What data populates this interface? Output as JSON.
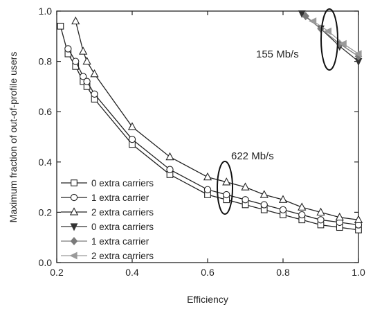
{
  "chart_data": {
    "type": "line",
    "xlabel": "Efficiency",
    "ylabel": "Maximum fraction of out-of-profile users",
    "xlim": [
      0.2,
      1.0
    ],
    "ylim": [
      0.0,
      1.0
    ],
    "xticks": [
      0.2,
      0.4,
      0.6,
      0.8,
      1.0
    ],
    "xtick_labels": [
      "0.2",
      "0.4",
      "0.6",
      "0.8",
      "1.0"
    ],
    "yticks": [
      0.0,
      0.2,
      0.4,
      0.6,
      0.8,
      1.0
    ],
    "ytick_labels": [
      "0.0",
      "0.2",
      "0.4",
      "0.6",
      "0.8",
      "1.0"
    ],
    "grid": false,
    "legend_position": "bottom-left",
    "series": [
      {
        "name": "0 extra carriers",
        "marker": "square-open",
        "color": "#222222",
        "x": [
          0.21,
          0.23,
          0.25,
          0.27,
          0.28,
          0.3,
          0.4,
          0.5,
          0.6,
          0.65,
          0.7,
          0.75,
          0.8,
          0.85,
          0.9,
          0.95,
          1.0
        ],
        "y": [
          0.94,
          0.83,
          0.78,
          0.72,
          0.7,
          0.65,
          0.47,
          0.35,
          0.27,
          0.25,
          0.23,
          0.21,
          0.19,
          0.17,
          0.15,
          0.14,
          0.13
        ]
      },
      {
        "name": "1 extra carrier",
        "marker": "circle-open",
        "color": "#222222",
        "x": [
          0.23,
          0.25,
          0.27,
          0.28,
          0.3,
          0.4,
          0.5,
          0.6,
          0.65,
          0.7,
          0.75,
          0.8,
          0.85,
          0.9,
          0.95,
          1.0
        ],
        "y": [
          0.85,
          0.8,
          0.74,
          0.72,
          0.67,
          0.49,
          0.37,
          0.29,
          0.27,
          0.25,
          0.23,
          0.21,
          0.19,
          0.17,
          0.16,
          0.15
        ]
      },
      {
        "name": "2 extra carriers",
        "marker": "triangle-open",
        "color": "#222222",
        "x": [
          0.25,
          0.27,
          0.28,
          0.3,
          0.4,
          0.5,
          0.6,
          0.65,
          0.7,
          0.75,
          0.8,
          0.85,
          0.9,
          0.95,
          1.0
        ],
        "y": [
          0.96,
          0.84,
          0.8,
          0.75,
          0.54,
          0.42,
          0.34,
          0.32,
          0.3,
          0.27,
          0.25,
          0.22,
          0.2,
          0.18,
          0.17
        ]
      },
      {
        "name": "0 extra carriers",
        "marker": "triangle-down-filled",
        "color": "#333333",
        "x": [
          0.85,
          0.9,
          0.95,
          1.0
        ],
        "y": [
          0.99,
          0.93,
          0.86,
          0.8
        ]
      },
      {
        "name": "1 extra carrier",
        "marker": "diamond-filled",
        "color": "#7a7a7a",
        "x": [
          0.86,
          0.9,
          0.95,
          1.0
        ],
        "y": [
          0.98,
          0.93,
          0.87,
          0.82
        ]
      },
      {
        "name": "2 extra carriers",
        "marker": "triangle-left-filled",
        "color": "#9a9a9a",
        "x": [
          0.88,
          0.92,
          0.96,
          1.0
        ],
        "y": [
          0.96,
          0.92,
          0.87,
          0.83
        ]
      }
    ],
    "annotations": [
      {
        "text": "155 Mb/s"
      },
      {
        "text": "622 Mb/s"
      }
    ]
  }
}
